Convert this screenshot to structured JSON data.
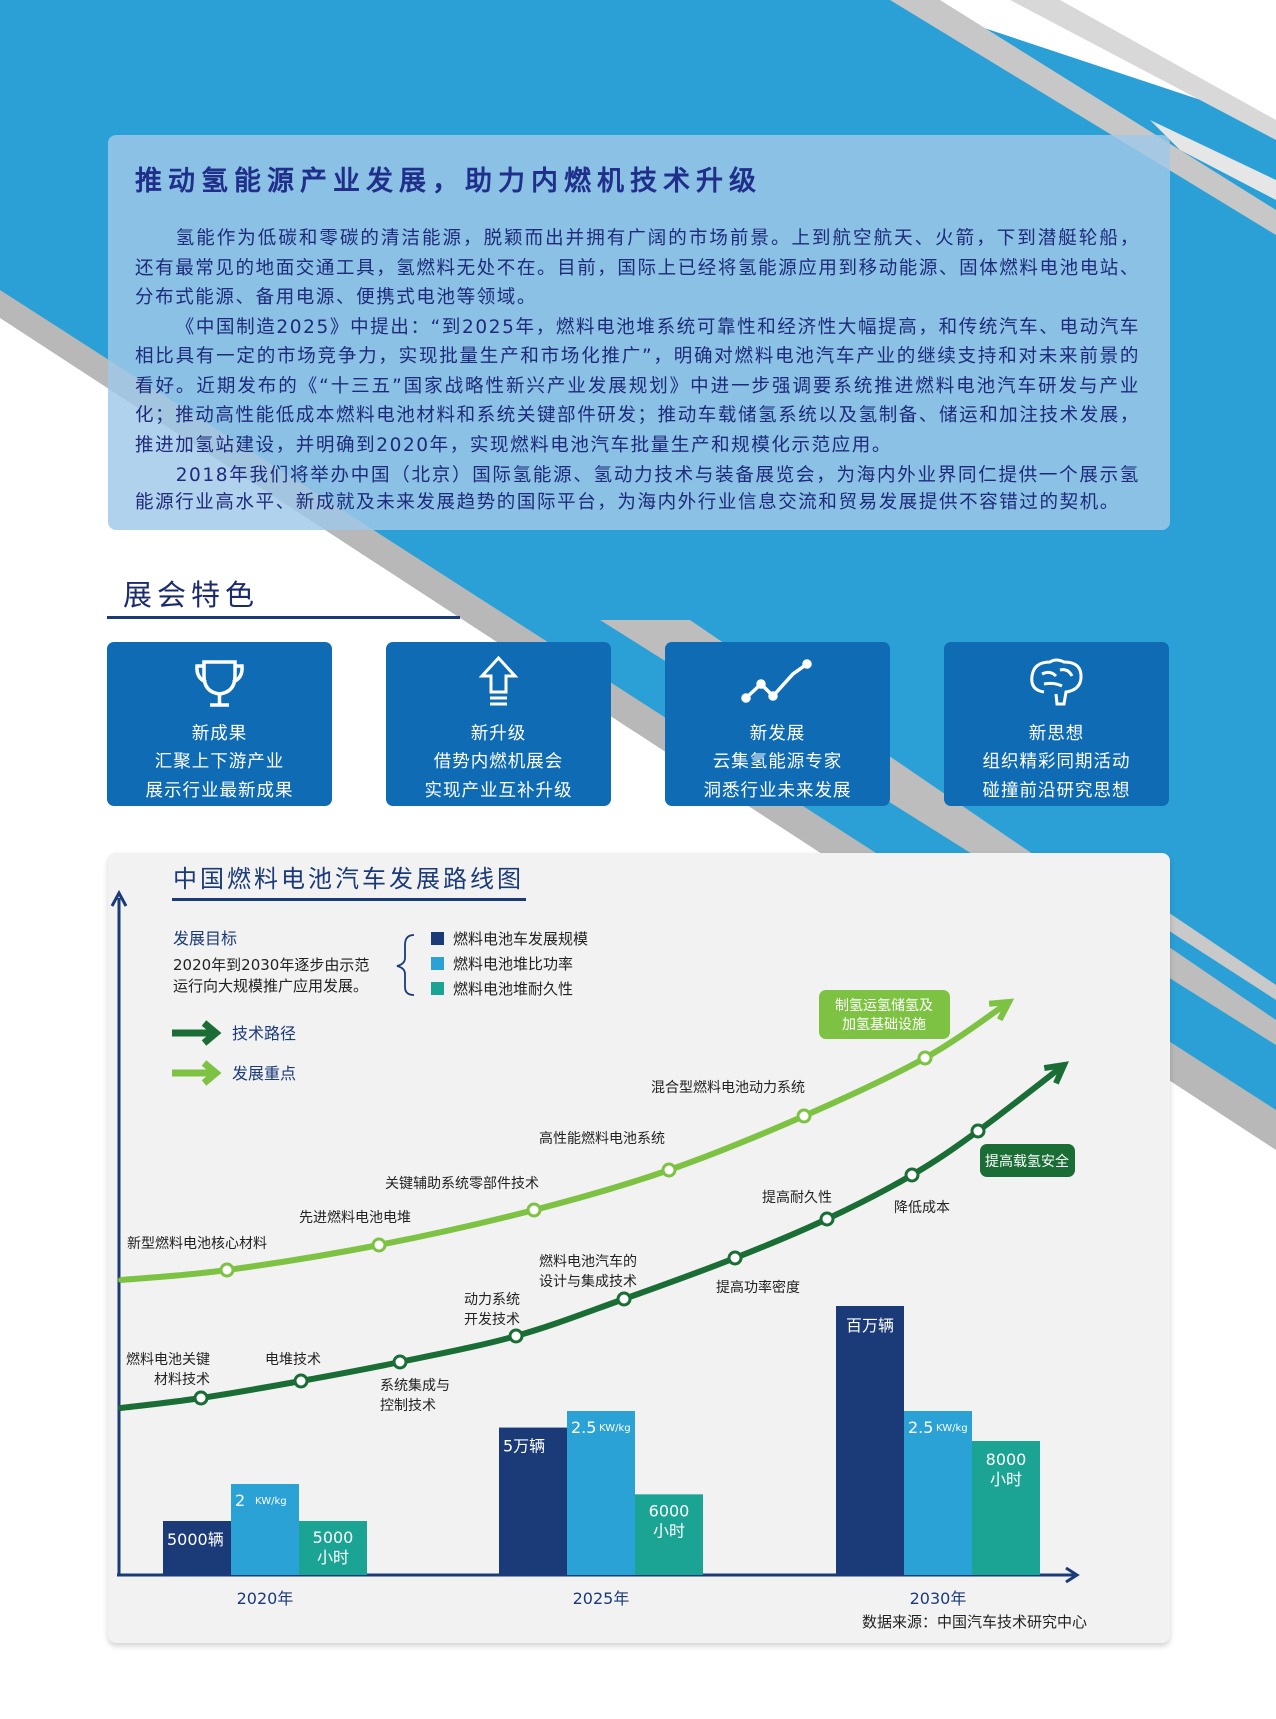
{
  "colors": {
    "page_blue": "#2aa0d6",
    "card_navy": "#0f6bb4",
    "text_navy": "#1f2b7a",
    "light_green": "#7dc243",
    "dark_green": "#1a6e35",
    "bar_navy": "#1b3a78",
    "bar_blue": "#2aa2d6",
    "bar_teal": "#1ba394"
  },
  "intro": {
    "title": "推动氢能源产业发展，助力内燃机技术升级",
    "paragraphs": [
      "氢能作为低碳和零碳的清洁能源，脱颖而出并拥有广阔的市场前景。上到航空航天、火箭，下到潜艇轮船，还有最常见的地面交通工具，氢燃料无处不在。目前，国际上已经将氢能源应用到移动能源、固体燃料电池电站、分布式能源、备用电源、便携式电池等领域。",
      "《中国制造2025》中提出：“到2025年，燃料电池堆系统可靠性和经济性大幅提高，和传统汽车、电动汽车相比具有一定的市场竞争力，实现批量生产和市场化推广”，明确对燃料电池汽车产业的继续支持和对未来前景的看好。近期发布的《“十三五”国家战略性新兴产业发展规划》中进一步强调要系统推进燃料电池汽车研发与产业化；推动高性能低成本燃料电池材料和系统关键部件研发；推动车载储氢系统以及氢制备、储运和加注技术发展，推进加氢站建设，并明确到2020年，实现燃料电池汽车批量生产和规模化示范应用。",
      "2018年我们将举办中国（北京）国际氢能源、氢动力技术与装备展览会，为海内外业界同仁提供一个展示氢能源行业高水平、新成就及未来发展趋势的国际平台，为海内外行业信息交流和贸易发展提供不容错过的契机。"
    ]
  },
  "features": {
    "title": "展会特色",
    "items": [
      {
        "icon": "trophy-icon",
        "title": "新成果",
        "line1": "汇聚上下游产业",
        "line2": "展示行业最新成果"
      },
      {
        "icon": "upgrade-arrow-icon",
        "title": "新升级",
        "line1": "借势内燃机展会",
        "line2": "实现产业互补升级"
      },
      {
        "icon": "trend-line-icon",
        "title": "新发展",
        "line1": "云集氢能源专家",
        "line2": "洞悉行业未来发展"
      },
      {
        "icon": "brain-icon",
        "title": "新思想",
        "line1": "组织精彩同期活动",
        "line2": "碰撞前沿研究思想"
      }
    ]
  },
  "chart_data": {
    "type": "bar",
    "title": "中国燃料电池汽车发展路线图",
    "goal_title": "发展目标",
    "goal_text": [
      "2020年到2030年逐步由示范",
      "运行向大规模推广应用发展。"
    ],
    "categories": [
      "2020年",
      "2025年",
      "2030年"
    ],
    "series": [
      {
        "name": "燃料电池车发展规模",
        "values": [
          5000,
          50000,
          1000000
        ],
        "labels": [
          "5000辆",
          "5万辆",
          "百万辆"
        ],
        "color": "#1b3a78"
      },
      {
        "name": "燃料电池堆比功率",
        "values": [
          2,
          2.5,
          2.5
        ],
        "labels": [
          "2",
          "2.5",
          "2.5"
        ],
        "unit": "KW/kg",
        "color": "#2aa2d6"
      },
      {
        "name": "燃料电池堆耐久性",
        "values": [
          5000,
          6000,
          8000
        ],
        "labels": [
          [
            "5000",
            "小时"
          ],
          [
            "6000",
            "小时"
          ],
          [
            "8000",
            "小时"
          ]
        ],
        "color": "#1ba394"
      }
    ],
    "path_legend": [
      {
        "name": "技术路径",
        "color": "#1a6e35"
      },
      {
        "name": "发展重点",
        "color": "#7dc243"
      }
    ],
    "tech_path": [
      [
        "燃料电池关键",
        "材料技术"
      ],
      [
        "电堆技术"
      ],
      [
        "系统集成与",
        "控制技术"
      ],
      [
        "动力系统",
        "开发技术"
      ],
      [
        "燃料电池汽车的",
        "设计与集成技术"
      ],
      [
        "提高功率密度"
      ],
      [
        "提高耐久性"
      ],
      [
        "降低成本"
      ],
      [
        "提高载氢安全"
      ]
    ],
    "focus_path": [
      [
        "新型燃料电池核心材料"
      ],
      [
        "先进燃料电池电堆"
      ],
      [
        "关键辅助系统零部件技术"
      ],
      [
        "高性能燃料电池系统"
      ],
      [
        "混合型燃料电池动力系统"
      ],
      [
        "制氢运氢储氢及",
        "加氢基础设施"
      ]
    ],
    "source": "数据来源：中国汽车技术研究中心"
  }
}
